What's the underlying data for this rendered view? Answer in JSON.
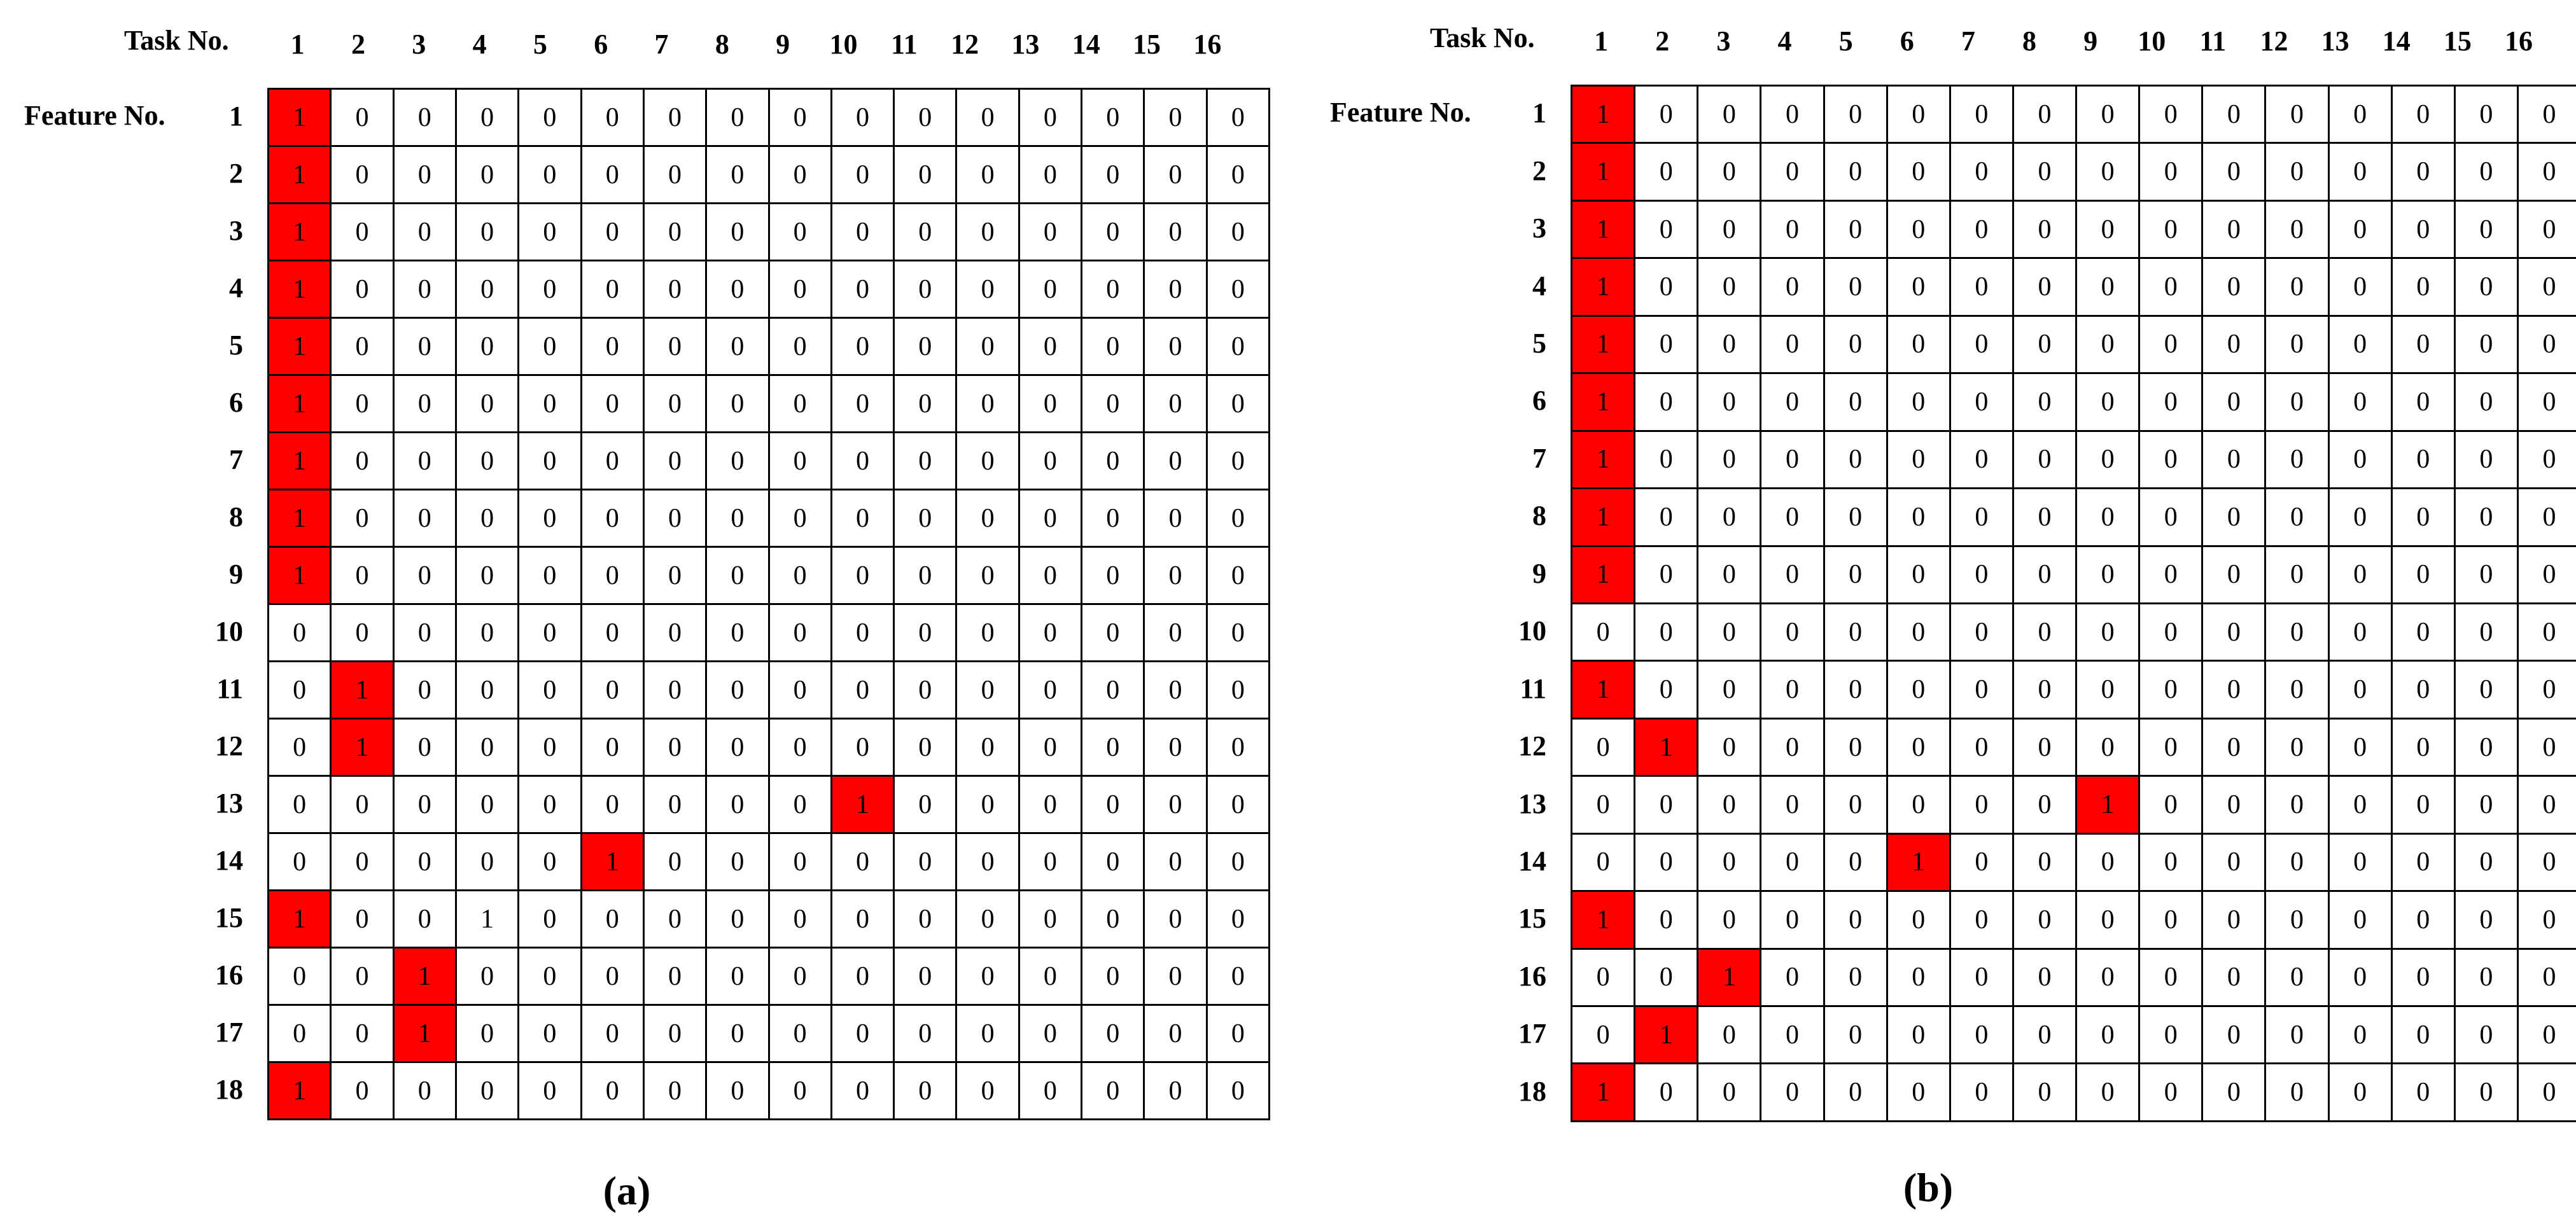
{
  "colors": {
    "highlight": "#ff0000",
    "grid": "#000000"
  },
  "panels": [
    {
      "caption": "(a)",
      "task_label": "Task No.",
      "feature_label": "Feature No.",
      "columns": [
        "1",
        "2",
        "3",
        "4",
        "5",
        "6",
        "7",
        "8",
        "9",
        "10",
        "11",
        "12",
        "13",
        "14",
        "15",
        "16"
      ],
      "rows": [
        "1",
        "2",
        "3",
        "4",
        "5",
        "6",
        "7",
        "8",
        "9",
        "10",
        "11",
        "12",
        "13",
        "14",
        "15",
        "16",
        "17",
        "18"
      ],
      "matrix": [
        [
          1,
          0,
          0,
          0,
          0,
          0,
          0,
          0,
          0,
          0,
          0,
          0,
          0,
          0,
          0,
          0
        ],
        [
          1,
          0,
          0,
          0,
          0,
          0,
          0,
          0,
          0,
          0,
          0,
          0,
          0,
          0,
          0,
          0
        ],
        [
          1,
          0,
          0,
          0,
          0,
          0,
          0,
          0,
          0,
          0,
          0,
          0,
          0,
          0,
          0,
          0
        ],
        [
          1,
          0,
          0,
          0,
          0,
          0,
          0,
          0,
          0,
          0,
          0,
          0,
          0,
          0,
          0,
          0
        ],
        [
          1,
          0,
          0,
          0,
          0,
          0,
          0,
          0,
          0,
          0,
          0,
          0,
          0,
          0,
          0,
          0
        ],
        [
          1,
          0,
          0,
          0,
          0,
          0,
          0,
          0,
          0,
          0,
          0,
          0,
          0,
          0,
          0,
          0
        ],
        [
          1,
          0,
          0,
          0,
          0,
          0,
          0,
          0,
          0,
          0,
          0,
          0,
          0,
          0,
          0,
          0
        ],
        [
          1,
          0,
          0,
          0,
          0,
          0,
          0,
          0,
          0,
          0,
          0,
          0,
          0,
          0,
          0,
          0
        ],
        [
          1,
          0,
          0,
          0,
          0,
          0,
          0,
          0,
          0,
          0,
          0,
          0,
          0,
          0,
          0,
          0
        ],
        [
          0,
          0,
          0,
          0,
          0,
          0,
          0,
          0,
          0,
          0,
          0,
          0,
          0,
          0,
          0,
          0
        ],
        [
          0,
          1,
          0,
          0,
          0,
          0,
          0,
          0,
          0,
          0,
          0,
          0,
          0,
          0,
          0,
          0
        ],
        [
          0,
          1,
          0,
          0,
          0,
          0,
          0,
          0,
          0,
          0,
          0,
          0,
          0,
          0,
          0,
          0
        ],
        [
          0,
          0,
          0,
          0,
          0,
          0,
          0,
          0,
          0,
          1,
          0,
          0,
          0,
          0,
          0,
          0
        ],
        [
          0,
          0,
          0,
          0,
          0,
          1,
          0,
          0,
          0,
          0,
          0,
          0,
          0,
          0,
          0,
          0
        ],
        [
          1,
          0,
          0,
          1,
          0,
          0,
          0,
          0,
          0,
          0,
          0,
          0,
          0,
          0,
          0,
          0
        ],
        [
          0,
          0,
          1,
          0,
          0,
          0,
          0,
          0,
          0,
          0,
          0,
          0,
          0,
          0,
          0,
          0
        ],
        [
          0,
          0,
          1,
          0,
          0,
          0,
          0,
          0,
          0,
          0,
          0,
          0,
          0,
          0,
          0,
          0
        ],
        [
          1,
          0,
          0,
          0,
          0,
          0,
          0,
          0,
          0,
          0,
          0,
          0,
          0,
          0,
          0,
          0
        ]
      ],
      "highlighted": [
        [
          0,
          0
        ],
        [
          1,
          0
        ],
        [
          2,
          0
        ],
        [
          3,
          0
        ],
        [
          4,
          0
        ],
        [
          5,
          0
        ],
        [
          6,
          0
        ],
        [
          7,
          0
        ],
        [
          8,
          0
        ],
        [
          10,
          1
        ],
        [
          11,
          1
        ],
        [
          12,
          9
        ],
        [
          13,
          5
        ],
        [
          14,
          0
        ],
        [
          15,
          2
        ],
        [
          16,
          2
        ],
        [
          17,
          0
        ]
      ]
    },
    {
      "caption": "(b)",
      "task_label": "Task No.",
      "feature_label": "Feature No.",
      "columns": [
        "1",
        "2",
        "3",
        "4",
        "5",
        "6",
        "7",
        "8",
        "9",
        "10",
        "11",
        "12",
        "13",
        "14",
        "15",
        "16"
      ],
      "rows": [
        "1",
        "2",
        "3",
        "4",
        "5",
        "6",
        "7",
        "8",
        "9",
        "10",
        "11",
        "12",
        "13",
        "14",
        "15",
        "16",
        "17",
        "18"
      ],
      "matrix": [
        [
          1,
          0,
          0,
          0,
          0,
          0,
          0,
          0,
          0,
          0,
          0,
          0,
          0,
          0,
          0,
          0
        ],
        [
          1,
          0,
          0,
          0,
          0,
          0,
          0,
          0,
          0,
          0,
          0,
          0,
          0,
          0,
          0,
          0
        ],
        [
          1,
          0,
          0,
          0,
          0,
          0,
          0,
          0,
          0,
          0,
          0,
          0,
          0,
          0,
          0,
          0
        ],
        [
          1,
          0,
          0,
          0,
          0,
          0,
          0,
          0,
          0,
          0,
          0,
          0,
          0,
          0,
          0,
          0
        ],
        [
          1,
          0,
          0,
          0,
          0,
          0,
          0,
          0,
          0,
          0,
          0,
          0,
          0,
          0,
          0,
          0
        ],
        [
          1,
          0,
          0,
          0,
          0,
          0,
          0,
          0,
          0,
          0,
          0,
          0,
          0,
          0,
          0,
          0
        ],
        [
          1,
          0,
          0,
          0,
          0,
          0,
          0,
          0,
          0,
          0,
          0,
          0,
          0,
          0,
          0,
          0
        ],
        [
          1,
          0,
          0,
          0,
          0,
          0,
          0,
          0,
          0,
          0,
          0,
          0,
          0,
          0,
          0,
          0
        ],
        [
          1,
          0,
          0,
          0,
          0,
          0,
          0,
          0,
          0,
          0,
          0,
          0,
          0,
          0,
          0,
          0
        ],
        [
          0,
          0,
          0,
          0,
          0,
          0,
          0,
          0,
          0,
          0,
          0,
          0,
          0,
          0,
          0,
          0
        ],
        [
          1,
          0,
          0,
          0,
          0,
          0,
          0,
          0,
          0,
          0,
          0,
          0,
          0,
          0,
          0,
          0
        ],
        [
          0,
          1,
          0,
          0,
          0,
          0,
          0,
          0,
          0,
          0,
          0,
          0,
          0,
          0,
          0,
          0
        ],
        [
          0,
          0,
          0,
          0,
          0,
          0,
          0,
          0,
          1,
          0,
          0,
          0,
          0,
          0,
          0,
          0
        ],
        [
          0,
          0,
          0,
          0,
          0,
          1,
          0,
          0,
          0,
          0,
          0,
          0,
          0,
          0,
          0,
          0
        ],
        [
          1,
          0,
          0,
          0,
          0,
          0,
          0,
          0,
          0,
          0,
          0,
          0,
          0,
          0,
          0,
          0
        ],
        [
          0,
          0,
          1,
          0,
          0,
          0,
          0,
          0,
          0,
          0,
          0,
          0,
          0,
          0,
          0,
          0
        ],
        [
          0,
          1,
          0,
          0,
          0,
          0,
          0,
          0,
          0,
          0,
          0,
          0,
          0,
          0,
          0,
          0
        ],
        [
          1,
          0,
          0,
          0,
          0,
          0,
          0,
          0,
          0,
          0,
          0,
          0,
          0,
          0,
          0,
          0
        ]
      ],
      "highlighted": [
        [
          0,
          0
        ],
        [
          1,
          0
        ],
        [
          2,
          0
        ],
        [
          3,
          0
        ],
        [
          4,
          0
        ],
        [
          5,
          0
        ],
        [
          6,
          0
        ],
        [
          7,
          0
        ],
        [
          8,
          0
        ],
        [
          10,
          0
        ],
        [
          11,
          1
        ],
        [
          12,
          8
        ],
        [
          13,
          5
        ],
        [
          14,
          0
        ],
        [
          15,
          2
        ],
        [
          16,
          1
        ],
        [
          17,
          0
        ]
      ]
    }
  ]
}
